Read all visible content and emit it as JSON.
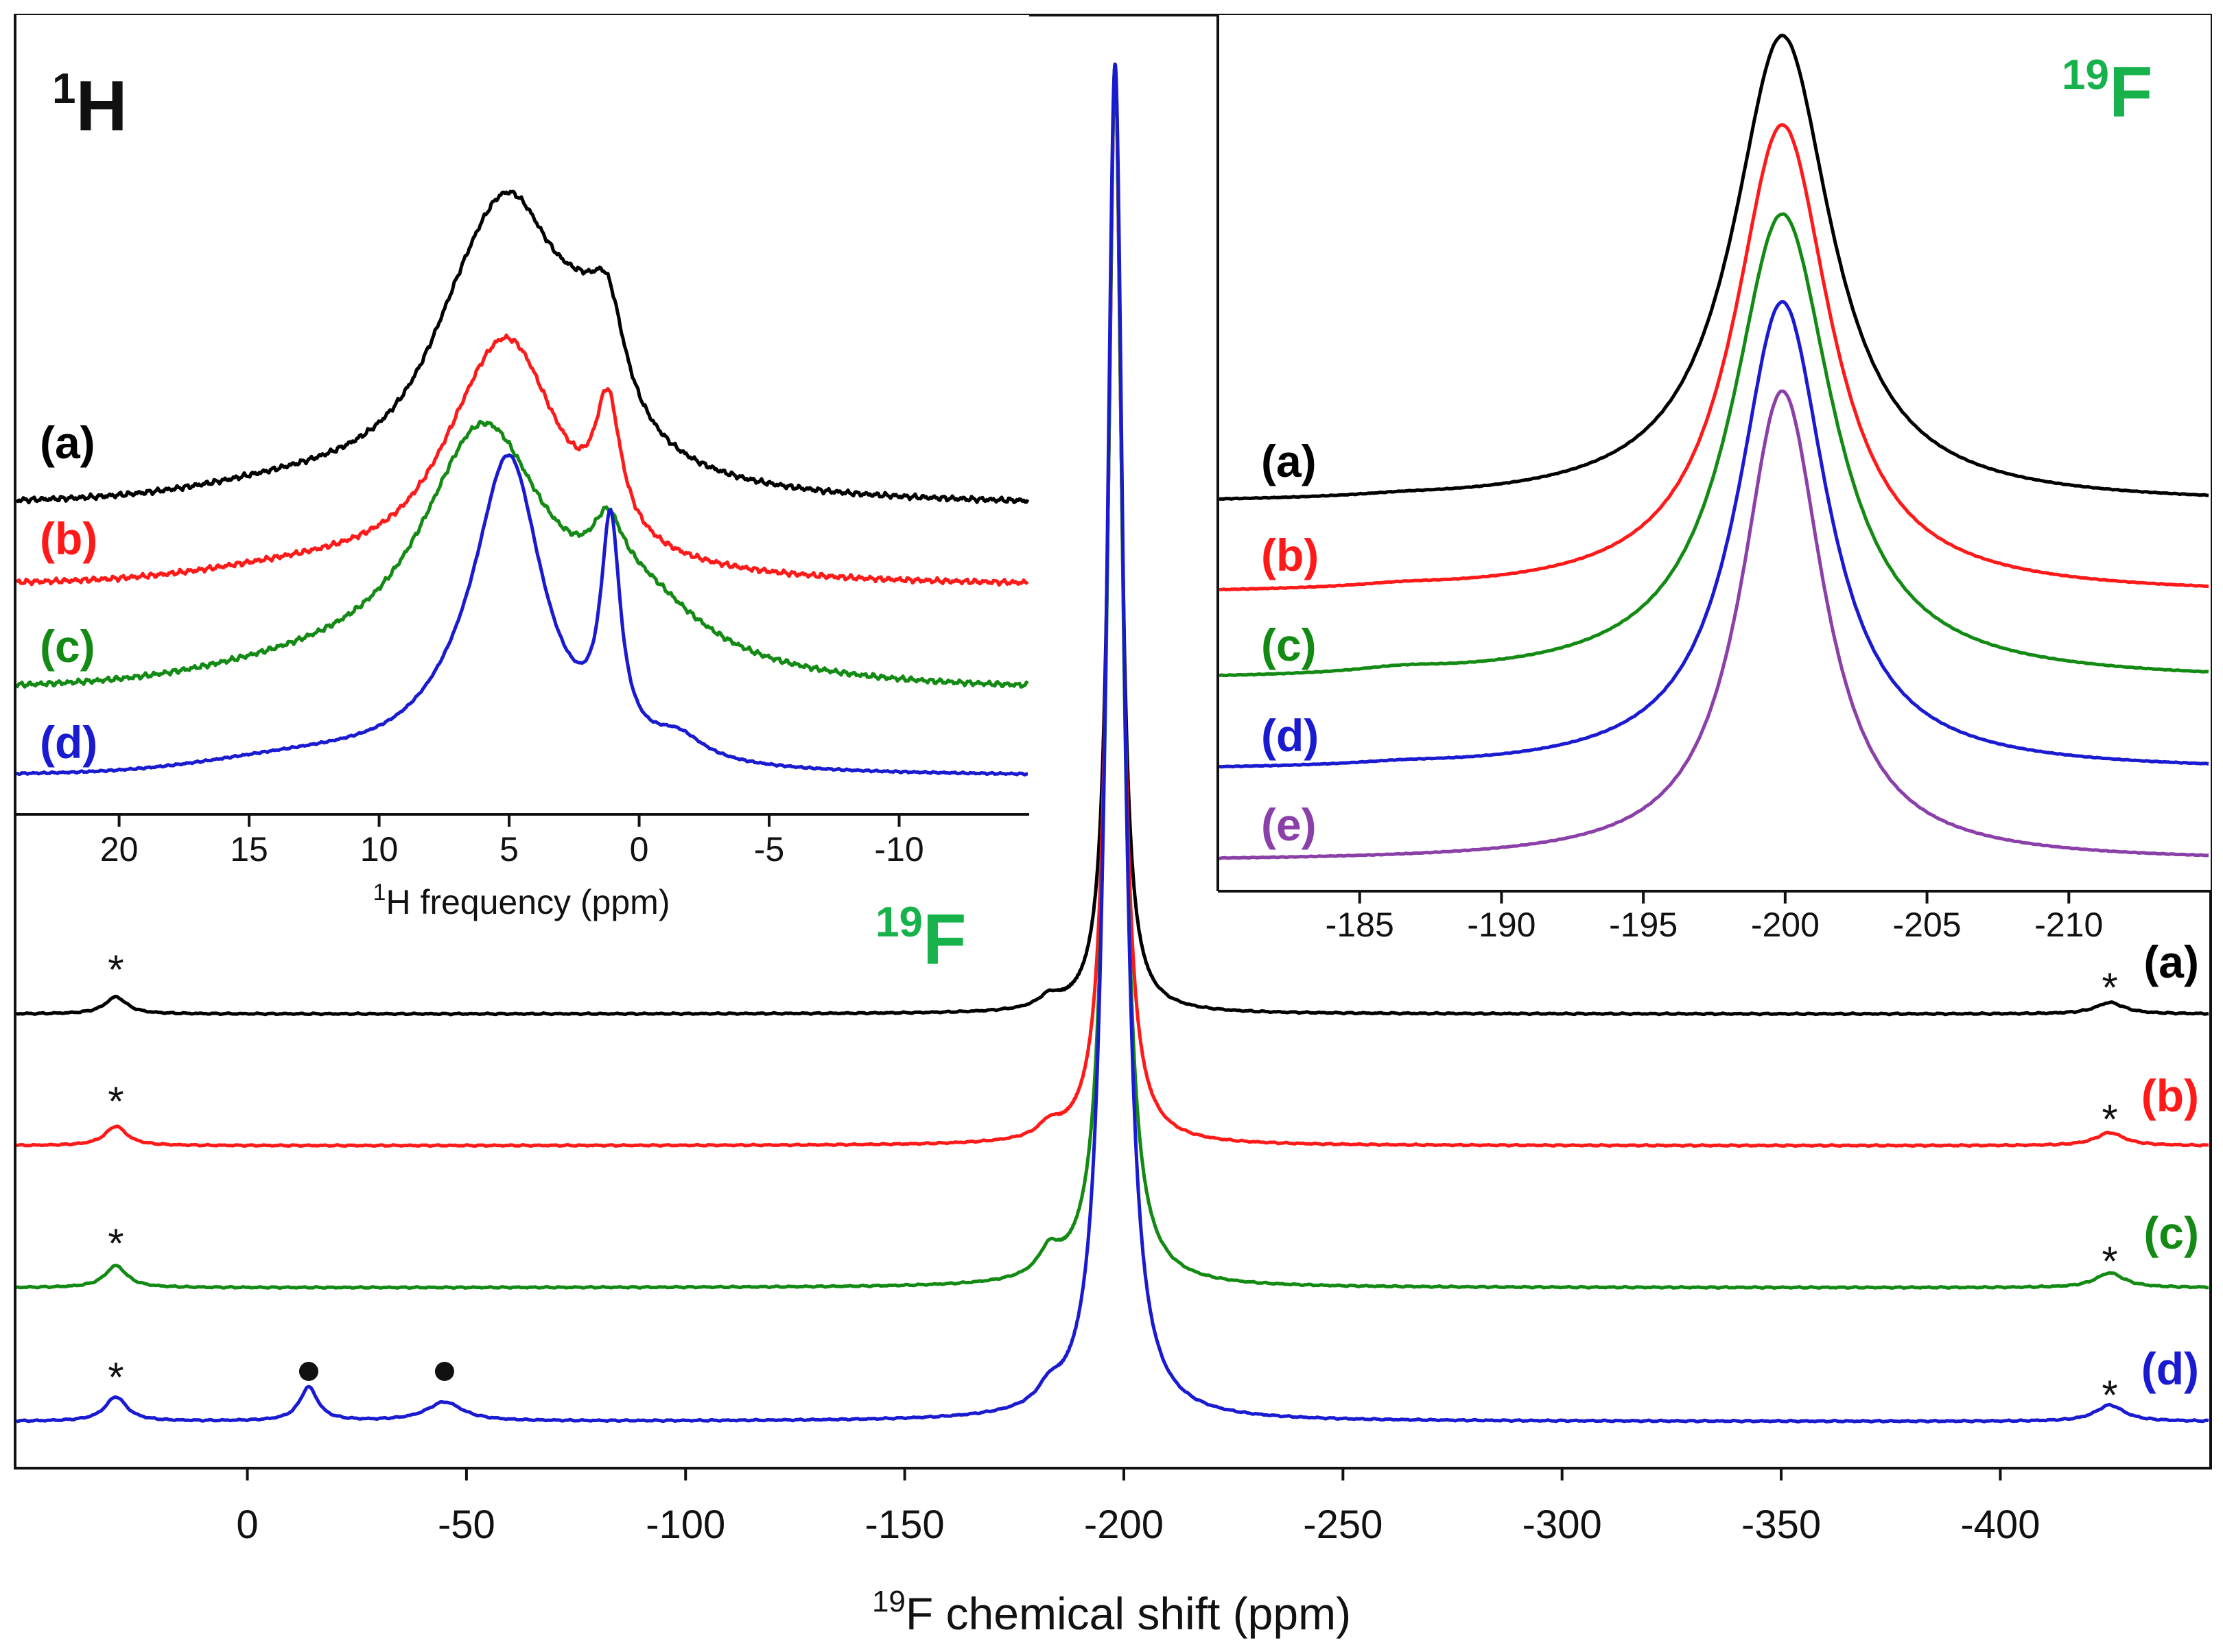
{
  "colors": {
    "a": "#000000",
    "b": "#ff1a1a",
    "c": "#138a13",
    "d": "#1a1ad0",
    "e": "#8a40a8",
    "fluorine": "#17b24b"
  },
  "chart_data": [
    {
      "id": "main",
      "type": "line",
      "title": "",
      "nucleus_label": {
        "sup": "19",
        "base": "F"
      },
      "xlabel": {
        "sup": "19",
        "text": "F chemical shift (ppm)"
      },
      "ylabel": "",
      "xlim": [
        53,
        -448
      ],
      "x_reversed": true,
      "x_ticks": [
        0,
        -50,
        -100,
        -150,
        -200,
        -250,
        -300,
        -350,
        -400
      ],
      "x_tick_labels": [
        "0",
        "-50",
        "-100",
        "-150",
        "-200",
        "-250",
        "-300",
        "-350",
        "-400"
      ],
      "y_units": "normalized intensity, stacked",
      "series": [
        {
          "name": "(a)",
          "label": "(a)",
          "color_key": "a",
          "offset": 3.0,
          "peaks": [
            {
              "x": -198,
              "h": 1.0,
              "w": 1.7
            },
            {
              "x": -183,
              "h": 0.012,
              "w": 3
            },
            {
              "x": 30,
              "h": 0.018,
              "w": 3
            },
            {
              "x": -425,
              "h": 0.012,
              "w": 4
            }
          ]
        },
        {
          "name": "(b)",
          "label": "(b)",
          "color_key": "b",
          "offset": 2.0,
          "peaks": [
            {
              "x": -198,
              "h": 1.0,
              "w": 1.9
            },
            {
              "x": -183,
              "h": 0.012,
              "w": 3
            },
            {
              "x": 30,
              "h": 0.018,
              "w": 3
            },
            {
              "x": -425,
              "h": 0.012,
              "w": 4
            }
          ]
        },
        {
          "name": "(c)",
          "label": "(c)",
          "color_key": "c",
          "offset": 1.0,
          "peaks": [
            {
              "x": -198,
              "h": 1.0,
              "w": 2.1
            },
            {
              "x": -183,
              "h": 0.02,
              "w": 3
            },
            {
              "x": 30,
              "h": 0.018,
              "w": 3
            },
            {
              "x": -425,
              "h": 0.012,
              "w": 4
            }
          ]
        },
        {
          "name": "(d)",
          "label": "(d)",
          "color_key": "d",
          "offset": 0.0,
          "peaks": [
            {
              "x": -198,
              "h": 1.0,
              "w": 2.4
            },
            {
              "x": -183,
              "h": 0.012,
              "w": 3
            },
            {
              "x": 30,
              "h": 0.018,
              "w": 3
            },
            {
              "x": -14,
              "h": 0.025,
              "w": 2.5
            },
            {
              "x": -45,
              "h": 0.014,
              "w": 5
            },
            {
              "x": -425,
              "h": 0.012,
              "w": 4
            }
          ]
        }
      ],
      "annotations": {
        "spinning_sidebands": {
          "symbol": "*",
          "positions_ppm": [
            30,
            -425
          ],
          "series": [
            "(a)",
            "(b)",
            "(c)",
            "(d)"
          ]
        },
        "impurity_peaks": {
          "symbol": "●",
          "positions_ppm": [
            -14,
            -45
          ],
          "series": [
            "(d)"
          ]
        }
      }
    },
    {
      "id": "inset_1H",
      "type": "line",
      "title": "",
      "nucleus_label": {
        "sup": "1",
        "base": "H"
      },
      "xlabel": {
        "sup": "1",
        "text": "H frequency (ppm)"
      },
      "ylabel": "",
      "xlim": [
        24,
        -15
      ],
      "x_reversed": true,
      "x_ticks": [
        20,
        15,
        10,
        5,
        0,
        -5,
        -10
      ],
      "x_tick_labels": [
        "20",
        "15",
        "10",
        "5",
        "0",
        "-5",
        "-10"
      ],
      "y_units": "normalized intensity, stacked",
      "series": [
        {
          "name": "(a)",
          "label": "(a)",
          "color_key": "a",
          "offset": 3.0,
          "base_slope": 0.0,
          "peaks": [
            {
              "x": 5.0,
              "h": 1.35,
              "w": 2.6
            },
            {
              "x": 7.0,
              "h": 0.25,
              "w": 2
            },
            {
              "x": 1.2,
              "h": 0.45,
              "w": 0.8
            },
            {
              "x": 2.2,
              "h": 0.35,
              "w": 1.6
            }
          ]
        },
        {
          "name": "(b)",
          "label": "(b)",
          "color_key": "b",
          "offset": 2.0,
          "base_slope": 0.0,
          "peaks": [
            {
              "x": 5.0,
              "h": 1.25,
              "w": 2.5
            },
            {
              "x": 6.7,
              "h": 0.18,
              "w": 2
            },
            {
              "x": 1.2,
              "h": 0.7,
              "w": 0.6
            }
          ]
        },
        {
          "name": "(c)",
          "label": "(c)",
          "color_key": "c",
          "offset": 1.0,
          "base_slope": 0.0,
          "peaks": [
            {
              "x": 6.0,
              "h": 1.35,
              "w": 3.0
            },
            {
              "x": 1.2,
              "h": 0.3,
              "w": 0.7
            },
            {
              "x": 0.0,
              "h": 0.35,
              "w": 3.0
            }
          ]
        },
        {
          "name": "(d)",
          "label": "(d)",
          "color_key": "d",
          "offset": 0.0,
          "base_slope": 0.0,
          "peaks": [
            {
              "x": 5.0,
              "h": 1.3,
              "w": 1.6
            },
            {
              "x": 6.8,
              "h": 0.15,
              "w": 2.6
            },
            {
              "x": 1.1,
              "h": 0.95,
              "w": 0.45
            },
            {
              "x": -1.5,
              "h": 0.1,
              "w": 1.2
            }
          ]
        }
      ]
    },
    {
      "id": "inset_19F",
      "type": "line",
      "title": "",
      "nucleus_label": {
        "sup": "19",
        "base": "F"
      },
      "xlabel": {
        "sup": "",
        "text": ""
      },
      "ylabel": "",
      "xlim": [
        -180,
        -215
      ],
      "x_reversed": true,
      "x_ticks": [
        -185,
        -190,
        -195,
        -200,
        -205,
        -210
      ],
      "x_tick_labels": [
        "-185",
        "-190",
        "-195",
        "-200",
        "-205",
        "-210"
      ],
      "y_units": "normalized intensity, stacked",
      "series": [
        {
          "name": "(a)",
          "label": "(a)",
          "color_key": "a",
          "offset": 4.0,
          "peaks": [
            {
              "x": -199.9,
              "h": 1.0,
              "w": 2.1
            },
            {
              "x": -186.5,
              "h": 0.004,
              "w": 2
            }
          ]
        },
        {
          "name": "(b)",
          "label": "(b)",
          "color_key": "b",
          "offset": 3.0,
          "peaks": [
            {
              "x": -199.9,
              "h": 1.0,
              "w": 2.05
            },
            {
              "x": -186.5,
              "h": 0.006,
              "w": 2
            }
          ]
        },
        {
          "name": "(c)",
          "label": "(c)",
          "color_key": "c",
          "offset": 2.0,
          "peaks": [
            {
              "x": -199.9,
              "h": 1.0,
              "w": 2.15
            },
            {
              "x": -186.5,
              "h": 0.01,
              "w": 2
            }
          ]
        },
        {
          "name": "(d)",
          "label": "(d)",
          "color_key": "d",
          "offset": 1.0,
          "peaks": [
            {
              "x": -199.9,
              "h": 1.0,
              "w": 1.9
            },
            {
              "x": -186.5,
              "h": 0.005,
              "w": 2
            }
          ]
        },
        {
          "name": "(e)",
          "label": "(e)",
          "color_key": "e",
          "offset": 0.0,
          "peaks": [
            {
              "x": -199.9,
              "h": 1.0,
              "w": 1.75
            }
          ]
        }
      ]
    }
  ]
}
